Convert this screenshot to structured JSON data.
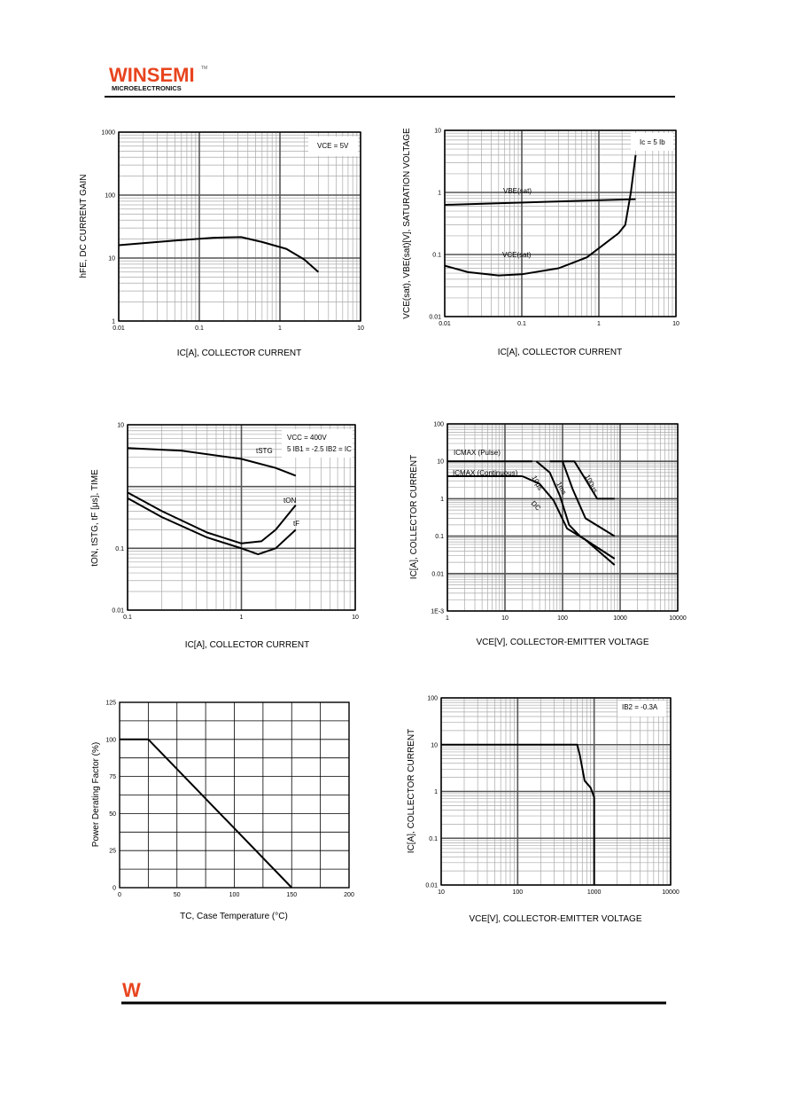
{
  "header": {
    "brand": "WINSEMI",
    "brand_sub": "MICROELECTRONICS",
    "brand_color": "#e8441e",
    "tm": "TM"
  },
  "footer": {
    "logo_letter": "W",
    "logo_color": "#e8441e"
  },
  "chart_data": [
    {
      "type": "line",
      "scale": "log-log",
      "grid": true,
      "ylabel": "hFE, DC CURRENT GAIN",
      "xlabel": "IC[A], COLLECTOR CURRENT",
      "xlim": [
        0.01,
        10
      ],
      "ylim": [
        1,
        1000
      ],
      "x_ticks": [
        "0.01",
        "0.1",
        "1",
        "10"
      ],
      "y_ticks": [
        "1",
        "10",
        "100",
        "1000"
      ],
      "annotations": [
        "VCE = 5V"
      ],
      "series": [
        {
          "x": [
            0.01,
            0.05,
            0.15,
            0.33,
            0.6,
            1.2,
            2.0,
            3.0
          ],
          "y": [
            16,
            19,
            21,
            21.5,
            18,
            14,
            9.5,
            6
          ]
        }
      ]
    },
    {
      "type": "line",
      "scale": "log-log",
      "grid": true,
      "ylabel": "VCE(sat), VBE(sat)[V], SATURATION VOLTAGE",
      "xlabel": "IC[A], COLLECTOR CURRENT",
      "xlim": [
        0.01,
        10
      ],
      "ylim": [
        0.01,
        10
      ],
      "x_ticks": [
        "0.01",
        "0.1",
        "1",
        "10"
      ],
      "y_ticks": [
        "0.01",
        "0.1",
        "1",
        "10"
      ],
      "annotations": [
        "Ic = 5 Ib"
      ],
      "series": [
        {
          "name": "VBE(sat)",
          "x": [
            0.01,
            3.0
          ],
          "y": [
            0.63,
            0.78
          ]
        },
        {
          "name": "VCE(sat)",
          "x": [
            0.01,
            0.02,
            0.05,
            0.1,
            0.3,
            0.7,
            1.2,
            1.8,
            2.2,
            2.6,
            3.0
          ],
          "y": [
            0.066,
            0.052,
            0.046,
            0.048,
            0.06,
            0.09,
            0.15,
            0.22,
            0.3,
            1.0,
            4.0
          ]
        }
      ]
    },
    {
      "type": "line",
      "scale": "log-log",
      "grid": true,
      "ylabel": "tON, tSTG, tF [μs], TIME",
      "xlabel": "IC[A], COLLECTOR CURRENT",
      "xlim": [
        0.1,
        10
      ],
      "ylim": [
        0.01,
        10
      ],
      "x_ticks": [
        "0.1",
        "1",
        "10"
      ],
      "y_ticks": [
        "0.01",
        "0.1",
        "10"
      ],
      "annotations": [
        "VCC = 400V",
        "5 IB1 = -2.5 IB2 = IC"
      ],
      "series": [
        {
          "name": "tSTG",
          "x": [
            0.1,
            0.3,
            1.0,
            2.0,
            3.0
          ],
          "y": [
            4.2,
            3.8,
            2.8,
            2.0,
            1.5
          ]
        },
        {
          "name": "tON",
          "x": [
            0.1,
            0.2,
            0.5,
            1.0,
            1.5,
            2.0,
            3.0
          ],
          "y": [
            0.8,
            0.4,
            0.18,
            0.12,
            0.13,
            0.2,
            0.5
          ]
        },
        {
          "name": "tF",
          "x": [
            0.1,
            0.2,
            0.5,
            1.0,
            1.4,
            2.0,
            3.0
          ],
          "y": [
            0.65,
            0.32,
            0.15,
            0.1,
            0.08,
            0.1,
            0.2
          ]
        }
      ]
    },
    {
      "type": "line",
      "scale": "log-log",
      "grid": true,
      "ylabel": "IC[A], COLLECTOR CURRENT",
      "xlabel": "VCE[V], COLLECTOR-EMITTER VOLTAGE",
      "xlim": [
        1,
        10000
      ],
      "ylim": [
        0.001,
        100
      ],
      "x_ticks": [
        "1",
        "10",
        "100",
        "1000",
        "10000"
      ],
      "y_ticks": [
        "1E-3",
        "0.01",
        "0.1",
        "1",
        "10",
        "100"
      ],
      "annotations": [
        "ICMAX (Pulse)",
        "ICMAX (Continuous)",
        "10μs",
        "1ms",
        "100μs",
        "DC"
      ],
      "series": [
        {
          "name": "ICMAX (Pulse)",
          "x": [
            1,
            30
          ],
          "y": [
            10,
            10
          ]
        },
        {
          "name": "ICMAX (Continuous)",
          "x": [
            1,
            20
          ],
          "y": [
            4,
            4
          ]
        },
        {
          "name": "100μs",
          "x": [
            100,
            160,
            260,
            400,
            800
          ],
          "y": [
            10,
            10,
            3,
            1,
            1
          ]
        },
        {
          "name": "1ms",
          "x": [
            60,
            100,
            150,
            250,
            800
          ],
          "y": [
            10,
            10,
            1.8,
            0.3,
            0.1
          ]
        },
        {
          "name": "10μs",
          "x": [
            35,
            60,
            90,
            130,
            200,
            800
          ],
          "y": [
            10,
            5,
            1.2,
            0.2,
            0.1,
            0.025
          ]
        },
        {
          "name": "DC",
          "x": [
            20,
            40,
            70,
            120,
            250,
            800
          ],
          "y": [
            4,
            2.5,
            0.9,
            0.16,
            0.08,
            0.017
          ]
        }
      ]
    },
    {
      "type": "line",
      "scale": "linear",
      "grid": true,
      "ylabel": "Power Derating Factor (%)",
      "xlabel": "TC, Case Temperature (°C)",
      "xlim": [
        0,
        200
      ],
      "ylim": [
        0,
        125
      ],
      "x_ticks": [
        "0",
        "50",
        "100",
        "150",
        "200"
      ],
      "y_ticks": [
        "0",
        "25",
        "50",
        "75",
        "100",
        "125"
      ],
      "series": [
        {
          "x": [
            0,
            25,
            150
          ],
          "y": [
            100,
            100,
            0
          ]
        }
      ]
    },
    {
      "type": "line",
      "scale": "log-log",
      "grid": true,
      "ylabel": "IC[A], COLLECTOR CURRENT",
      "xlabel": "VCE[V], COLLECTOR-EMITTER VOLTAGE",
      "xlim": [
        10,
        10000
      ],
      "ylim": [
        0.01,
        100
      ],
      "x_ticks": [
        "10",
        "100",
        "1000",
        "10000"
      ],
      "y_ticks": [
        "0.01",
        "0.1",
        "1",
        "10",
        "100"
      ],
      "annotations": [
        "IB2 = -0.3A"
      ],
      "series": [
        {
          "x": [
            10,
            600,
            650,
            750,
            900,
            1000,
            1000
          ],
          "y": [
            10,
            10,
            6,
            1.7,
            1.2,
            0.75,
            0.01
          ]
        }
      ]
    }
  ]
}
